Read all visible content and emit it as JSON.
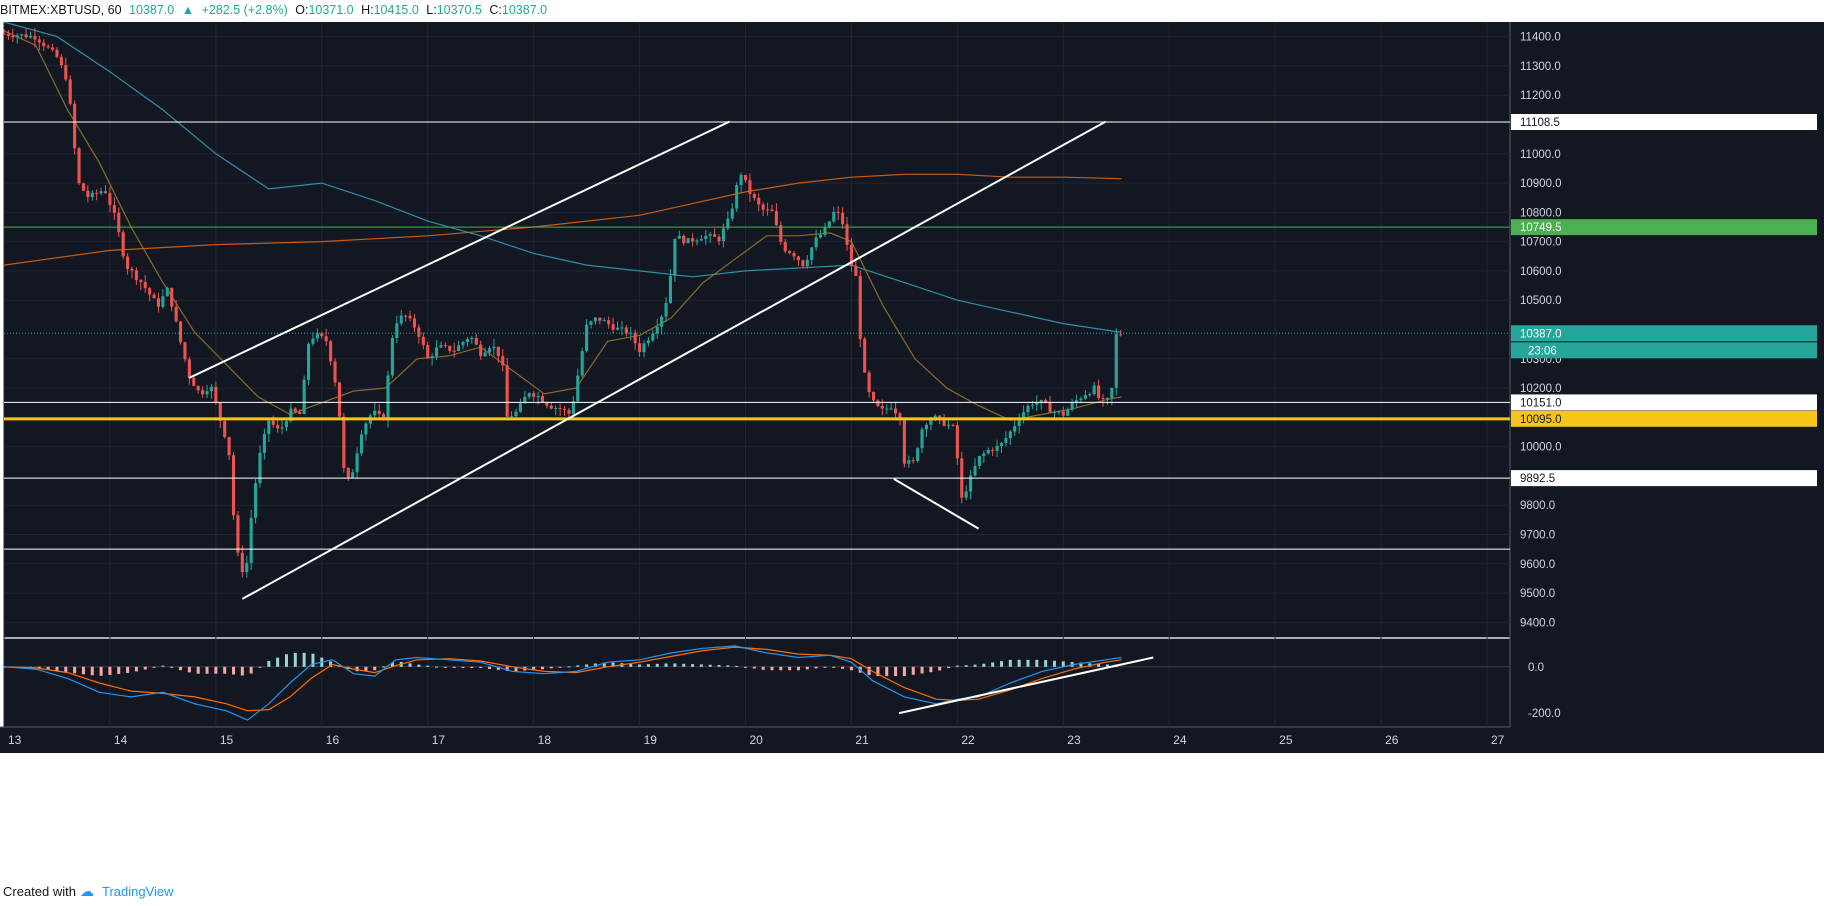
{
  "header": {
    "symbol": "BITMEX:XBTUSD, 60",
    "last": "10387.0",
    "change_arrow": "▲",
    "change": "+282.5 (+2.8%)",
    "o_label": "O:",
    "o": "10371.0",
    "h_label": "H:",
    "h": "10415.0",
    "l_label": "L:",
    "l": "10370.5",
    "c_label": "C:",
    "c": "10387.0"
  },
  "footer": {
    "created": "Created with",
    "logo_icon": "tradingview-cloud-icon",
    "brand": "TradingView"
  },
  "colors": {
    "background": "#131722",
    "up": "#26a69a",
    "down": "#ef5350",
    "grid": "#1f2533",
    "sma_short": "#8b6b2c",
    "sma_mid": "#2e8fa8",
    "sma_long": "#c95b14",
    "support": "#f5c518",
    "level": "#ffffff",
    "level_green": "#4caf50",
    "macd": "#2196f3",
    "signal": "#ff6d00"
  },
  "chart_data": {
    "type": "candlestick",
    "title": "BITMEX:XBTUSD, 60",
    "price_axis": {
      "ylim": [
        9350,
        11450
      ],
      "ticks": [
        "11400.0",
        "11300.0",
        "11200.0",
        "11000.0",
        "10900.0",
        "10800.0",
        "10700.0",
        "10600.0",
        "10500.0",
        "10300.0",
        "10200.0",
        "10000.0",
        "9800.0",
        "9700.0",
        "9600.0",
        "9500.0",
        "9400.0"
      ]
    },
    "time_axis": {
      "ticks": [
        "13",
        "14",
        "15",
        "16",
        "17",
        "18",
        "19",
        "20",
        "21",
        "22",
        "23",
        "24",
        "25",
        "26",
        "27"
      ]
    },
    "horizontal_levels": [
      {
        "price": 11108.5,
        "label": "11108.5",
        "color": "#ffffff"
      },
      {
        "price": 10749.5,
        "label": "10749.5",
        "color": "#4caf50"
      },
      {
        "price": 10387.0,
        "label": "10387.0",
        "color": "#26a69a",
        "timer": "23:06"
      },
      {
        "price": 10151.0,
        "label": "10151.0",
        "color": "#ffffff"
      },
      {
        "price": 10095.0,
        "label": "10095.0",
        "color": "#f5c518"
      },
      {
        "price": 9892.5,
        "label": "9892.5",
        "color": "#ffffff"
      },
      {
        "price": 9650.0,
        "label": "",
        "color": "#ffffff"
      }
    ],
    "trendlines": [
      {
        "from": [
          14.75,
          10235
        ],
        "to": [
          19.85,
          11110
        ]
      },
      {
        "from": [
          15.25,
          9480
        ],
        "to": [
          23.4,
          11110
        ]
      },
      {
        "from": [
          21.4,
          9890
        ],
        "to": [
          22.2,
          9720
        ]
      }
    ],
    "price_path": [
      [
        13.0,
        11410
      ],
      [
        13.3,
        11400
      ],
      [
        13.5,
        11330
      ],
      [
        13.6,
        11250
      ],
      [
        13.7,
        10900
      ],
      [
        13.8,
        10850
      ],
      [
        13.95,
        10880
      ],
      [
        14.05,
        10780
      ],
      [
        14.15,
        10620
      ],
      [
        14.3,
        10560
      ],
      [
        14.45,
        10480
      ],
      [
        14.55,
        10540
      ],
      [
        14.65,
        10380
      ],
      [
        14.75,
        10240
      ],
      [
        14.85,
        10180
      ],
      [
        14.95,
        10210
      ],
      [
        15.05,
        10080
      ],
      [
        15.12,
        10000
      ],
      [
        15.18,
        9700
      ],
      [
        15.22,
        9600
      ],
      [
        15.28,
        9560
      ],
      [
        15.35,
        9820
      ],
      [
        15.42,
        9980
      ],
      [
        15.5,
        10090
      ],
      [
        15.6,
        10050
      ],
      [
        15.7,
        10120
      ],
      [
        15.8,
        10110
      ],
      [
        15.88,
        10370
      ],
      [
        15.95,
        10380
      ],
      [
        16.05,
        10360
      ],
      [
        16.15,
        10180
      ],
      [
        16.22,
        9870
      ],
      [
        16.28,
        9900
      ],
      [
        16.38,
        10060
      ],
      [
        16.48,
        10120
      ],
      [
        16.58,
        10090
      ],
      [
        16.68,
        10420
      ],
      [
        16.78,
        10450
      ],
      [
        16.9,
        10400
      ],
      [
        17.0,
        10300
      ],
      [
        17.1,
        10340
      ],
      [
        17.25,
        10330
      ],
      [
        17.4,
        10380
      ],
      [
        17.5,
        10320
      ],
      [
        17.6,
        10350
      ],
      [
        17.7,
        10300
      ],
      [
        17.75,
        10100
      ],
      [
        17.85,
        10120
      ],
      [
        17.95,
        10190
      ],
      [
        18.05,
        10170
      ],
      [
        18.15,
        10140
      ],
      [
        18.25,
        10130
      ],
      [
        18.35,
        10110
      ],
      [
        18.42,
        10250
      ],
      [
        18.5,
        10410
      ],
      [
        18.6,
        10440
      ],
      [
        18.7,
        10420
      ],
      [
        18.8,
        10400
      ],
      [
        18.9,
        10390
      ],
      [
        19.0,
        10330
      ],
      [
        19.1,
        10380
      ],
      [
        19.2,
        10440
      ],
      [
        19.28,
        10530
      ],
      [
        19.32,
        10720
      ],
      [
        19.45,
        10700
      ],
      [
        19.6,
        10720
      ],
      [
        19.75,
        10710
      ],
      [
        19.85,
        10780
      ],
      [
        19.95,
        10940
      ],
      [
        20.05,
        10860
      ],
      [
        20.15,
        10810
      ],
      [
        20.25,
        10800
      ],
      [
        20.35,
        10680
      ],
      [
        20.45,
        10660
      ],
      [
        20.55,
        10620
      ],
      [
        20.65,
        10700
      ],
      [
        20.75,
        10740
      ],
      [
        20.85,
        10810
      ],
      [
        20.92,
        10760
      ],
      [
        20.98,
        10640
      ],
      [
        21.05,
        10570
      ],
      [
        21.1,
        10280
      ],
      [
        21.18,
        10160
      ],
      [
        21.28,
        10120
      ],
      [
        21.38,
        10140
      ],
      [
        21.46,
        10100
      ],
      [
        21.5,
        9950
      ],
      [
        21.58,
        9940
      ],
      [
        21.68,
        10080
      ],
      [
        21.78,
        10100
      ],
      [
        21.88,
        10080
      ],
      [
        21.98,
        10060
      ],
      [
        22.03,
        9810
      ],
      [
        22.1,
        9870
      ],
      [
        22.2,
        9960
      ],
      [
        22.3,
        9990
      ],
      [
        22.4,
        10000
      ],
      [
        22.5,
        10050
      ],
      [
        22.6,
        10110
      ],
      [
        22.7,
        10150
      ],
      [
        22.8,
        10150
      ],
      [
        22.9,
        10120
      ],
      [
        23.0,
        10110
      ],
      [
        23.1,
        10150
      ],
      [
        23.2,
        10180
      ],
      [
        23.3,
        10200
      ],
      [
        23.35,
        10150
      ],
      [
        23.45,
        10160
      ],
      [
        23.5,
        10380
      ],
      [
        23.55,
        10387
      ]
    ],
    "sma_short": [
      [
        13.0,
        11420
      ],
      [
        13.3,
        11370
      ],
      [
        13.6,
        11150
      ],
      [
        13.9,
        10970
      ],
      [
        14.2,
        10750
      ],
      [
        14.5,
        10560
      ],
      [
        14.8,
        10390
      ],
      [
        15.1,
        10280
      ],
      [
        15.4,
        10170
      ],
      [
        15.7,
        10110
      ],
      [
        16.0,
        10150
      ],
      [
        16.3,
        10190
      ],
      [
        16.6,
        10200
      ],
      [
        16.9,
        10300
      ],
      [
        17.2,
        10310
      ],
      [
        17.5,
        10340
      ],
      [
        17.8,
        10260
      ],
      [
        18.1,
        10180
      ],
      [
        18.4,
        10200
      ],
      [
        18.7,
        10360
      ],
      [
        19.0,
        10380
      ],
      [
        19.3,
        10440
      ],
      [
        19.6,
        10560
      ],
      [
        19.9,
        10640
      ],
      [
        20.2,
        10720
      ],
      [
        20.5,
        10720
      ],
      [
        20.8,
        10730
      ],
      [
        21.0,
        10700
      ],
      [
        21.3,
        10480
      ],
      [
        21.6,
        10300
      ],
      [
        21.9,
        10200
      ],
      [
        22.2,
        10140
      ],
      [
        22.5,
        10090
      ],
      [
        22.8,
        10110
      ],
      [
        23.1,
        10130
      ],
      [
        23.4,
        10160
      ],
      [
        23.55,
        10170
      ]
    ],
    "sma_mid": [
      [
        13.0,
        11450
      ],
      [
        13.5,
        11400
      ],
      [
        14.0,
        11280
      ],
      [
        14.5,
        11150
      ],
      [
        15.0,
        11000
      ],
      [
        15.5,
        10880
      ],
      [
        16.0,
        10900
      ],
      [
        16.5,
        10840
      ],
      [
        17.0,
        10770
      ],
      [
        17.5,
        10720
      ],
      [
        18.0,
        10660
      ],
      [
        18.5,
        10620
      ],
      [
        19.0,
        10600
      ],
      [
        19.5,
        10580
      ],
      [
        20.0,
        10600
      ],
      [
        20.5,
        10610
      ],
      [
        21.0,
        10620
      ],
      [
        21.5,
        10560
      ],
      [
        22.0,
        10500
      ],
      [
        22.5,
        10460
      ],
      [
        23.0,
        10420
      ],
      [
        23.55,
        10390
      ]
    ],
    "sma_long": [
      [
        13.0,
        10620
      ],
      [
        14.0,
        10670
      ],
      [
        15.0,
        10690
      ],
      [
        16.0,
        10700
      ],
      [
        17.0,
        10720
      ],
      [
        18.0,
        10750
      ],
      [
        19.0,
        10790
      ],
      [
        19.5,
        10830
      ],
      [
        20.0,
        10870
      ],
      [
        20.5,
        10900
      ],
      [
        21.0,
        10920
      ],
      [
        21.5,
        10930
      ],
      [
        22.0,
        10930
      ],
      [
        22.5,
        10920
      ],
      [
        23.0,
        10920
      ],
      [
        23.55,
        10915
      ]
    ],
    "macd_panel": {
      "ylim": [
        -260,
        120
      ],
      "ticks": [
        "0.0",
        "-200.0"
      ],
      "macd": [
        [
          13.0,
          0
        ],
        [
          13.3,
          -10
        ],
        [
          13.6,
          -50
        ],
        [
          13.9,
          -110
        ],
        [
          14.2,
          -130
        ],
        [
          14.5,
          -110
        ],
        [
          14.8,
          -160
        ],
        [
          15.1,
          -190
        ],
        [
          15.3,
          -230
        ],
        [
          15.5,
          -160
        ],
        [
          15.7,
          -70
        ],
        [
          15.9,
          10
        ],
        [
          16.1,
          30
        ],
        [
          16.3,
          -30
        ],
        [
          16.5,
          -40
        ],
        [
          16.7,
          30
        ],
        [
          16.9,
          40
        ],
        [
          17.2,
          30
        ],
        [
          17.5,
          20
        ],
        [
          17.8,
          -20
        ],
        [
          18.1,
          -30
        ],
        [
          18.4,
          -20
        ],
        [
          18.7,
          20
        ],
        [
          19.0,
          30
        ],
        [
          19.3,
          60
        ],
        [
          19.6,
          80
        ],
        [
          19.9,
          90
        ],
        [
          20.2,
          60
        ],
        [
          20.5,
          40
        ],
        [
          20.8,
          50
        ],
        [
          21.0,
          20
        ],
        [
          21.2,
          -60
        ],
        [
          21.5,
          -130
        ],
        [
          21.8,
          -160
        ],
        [
          22.0,
          -140
        ],
        [
          22.2,
          -130
        ],
        [
          22.5,
          -70
        ],
        [
          22.8,
          -20
        ],
        [
          23.1,
          10
        ],
        [
          23.4,
          30
        ],
        [
          23.55,
          40
        ]
      ],
      "signal": [
        [
          13.0,
          0
        ],
        [
          13.3,
          -5
        ],
        [
          13.6,
          -25
        ],
        [
          13.9,
          -70
        ],
        [
          14.2,
          -105
        ],
        [
          14.5,
          -115
        ],
        [
          14.8,
          -130
        ],
        [
          15.1,
          -160
        ],
        [
          15.3,
          -190
        ],
        [
          15.5,
          -185
        ],
        [
          15.7,
          -130
        ],
        [
          15.9,
          -50
        ],
        [
          16.1,
          10
        ],
        [
          16.3,
          -10
        ],
        [
          16.5,
          -25
        ],
        [
          16.7,
          5
        ],
        [
          16.9,
          30
        ],
        [
          17.2,
          35
        ],
        [
          17.5,
          25
        ],
        [
          17.8,
          0
        ],
        [
          18.1,
          -20
        ],
        [
          18.4,
          -25
        ],
        [
          18.7,
          0
        ],
        [
          19.0,
          20
        ],
        [
          19.3,
          45
        ],
        [
          19.6,
          70
        ],
        [
          19.9,
          85
        ],
        [
          20.2,
          75
        ],
        [
          20.5,
          55
        ],
        [
          20.8,
          50
        ],
        [
          21.0,
          35
        ],
        [
          21.2,
          -20
        ],
        [
          21.5,
          -90
        ],
        [
          21.8,
          -140
        ],
        [
          22.0,
          -145
        ],
        [
          22.2,
          -140
        ],
        [
          22.5,
          -100
        ],
        [
          22.8,
          -50
        ],
        [
          23.1,
          -10
        ],
        [
          23.4,
          20
        ],
        [
          23.55,
          30
        ]
      ],
      "trendline": {
        "from": [
          21.45,
          -200
        ],
        "to": [
          23.85,
          40
        ]
      }
    }
  }
}
